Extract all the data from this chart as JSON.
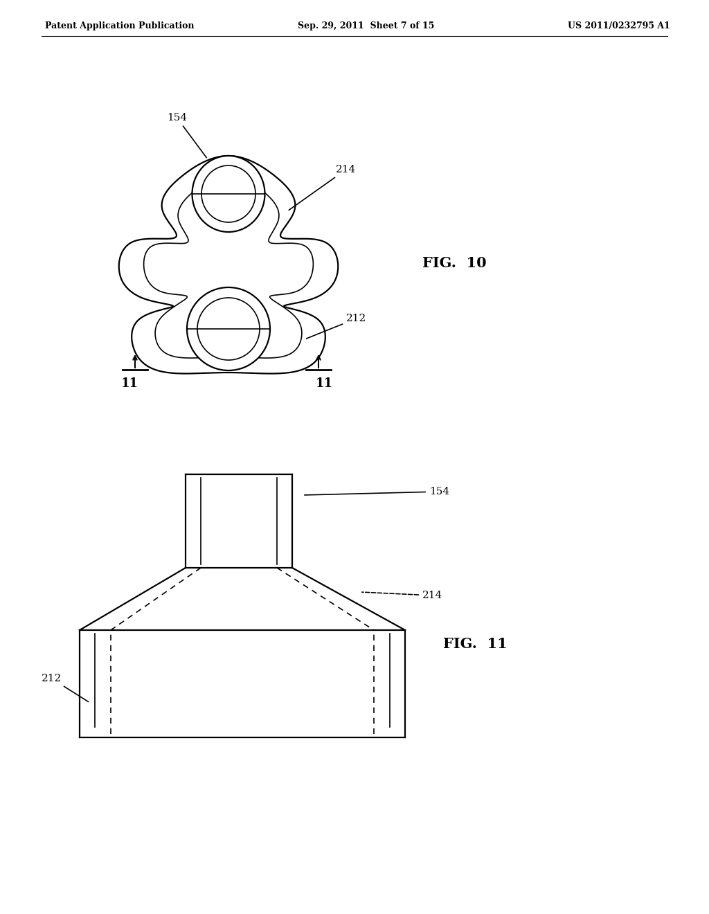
{
  "background_color": "#ffffff",
  "header_left": "Patent Application Publication",
  "header_mid": "Sep. 29, 2011  Sheet 7 of 15",
  "header_right": "US 2011/0232795 A1",
  "fig10_label": "FIG.  10",
  "fig11_label": "FIG.  11"
}
